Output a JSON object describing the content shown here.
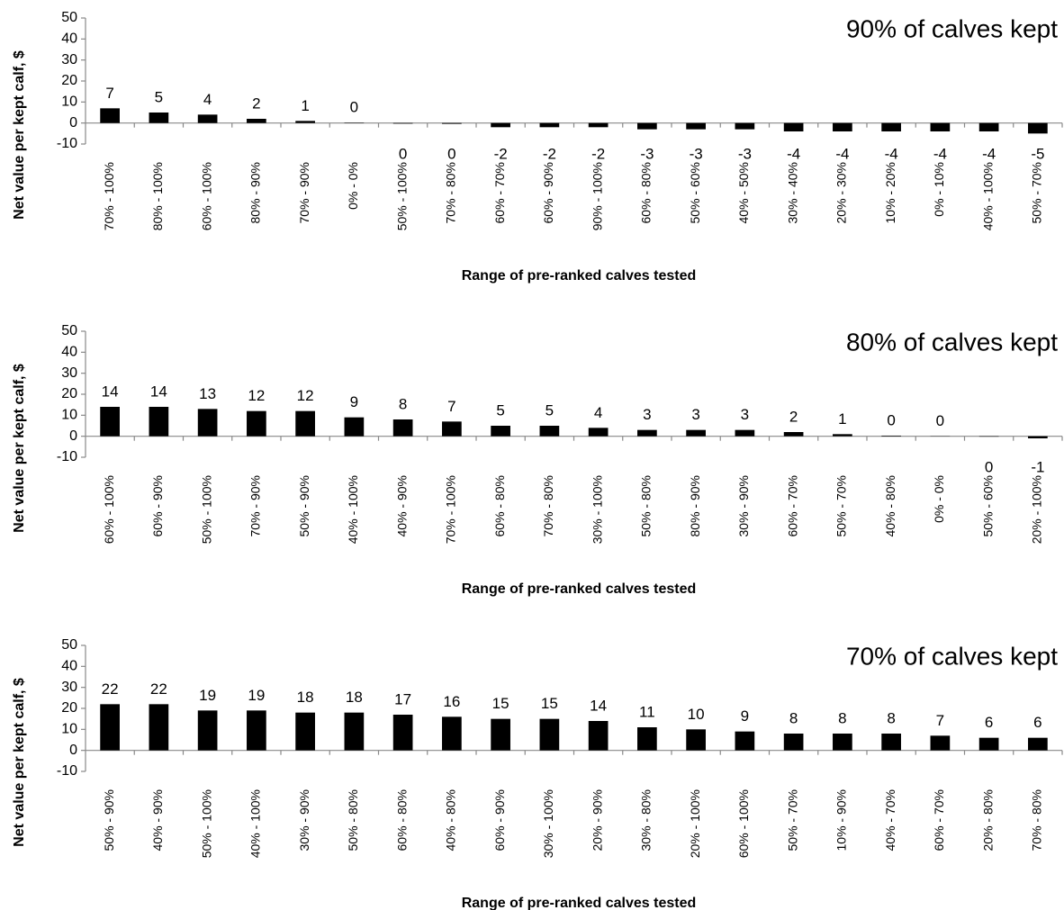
{
  "chart_data": [
    {
      "type": "bar",
      "title": "90% of calves kept",
      "y_label": "Net value per kept calf, $",
      "x_label": "Range of pre-ranked calves tested",
      "categories": [
        "70% - 100%",
        "80% - 100%",
        "60% - 100%",
        "80% - 90%",
        "70% - 90%",
        "0% - 0%",
        "50% - 100%",
        "70% - 80%",
        "60% - 70%",
        "60% - 90%",
        "90% - 100%",
        "60% - 80%",
        "50% - 60%",
        "40% - 50%",
        "30% - 40%",
        "20% - 30%",
        "10% - 20%",
        "0% - 10%",
        "40% - 100%",
        "50% - 70%"
      ],
      "values": [
        7,
        5,
        4,
        2,
        1,
        0.2,
        -0.3,
        -0.4,
        -2,
        -2,
        -2,
        -3,
        -3,
        -3,
        -4,
        -4,
        -4,
        -4,
        -4,
        -5
      ],
      "value_labels": [
        "7",
        "5",
        "4",
        "2",
        "1",
        "0",
        "0",
        "0",
        "-2",
        "-2",
        "-2",
        "-3",
        "-3",
        "-3",
        "-4",
        "-4",
        "-4",
        "-4",
        "-4",
        "-5"
      ],
      "color": "#000000",
      "ylim": [
        -10,
        50
      ],
      "yticks": [
        50,
        40,
        30,
        20,
        10,
        0,
        -10
      ],
      "grid": false
    },
    {
      "type": "bar",
      "title": "80% of calves kept",
      "y_label": "Net value per kept calf, $",
      "x_label": "Range of pre-ranked calves tested",
      "categories": [
        "60% - 100%",
        "60% - 90%",
        "50% - 100%",
        "70% - 90%",
        "50% - 90%",
        "40% - 100%",
        "40% - 90%",
        "70% - 100%",
        "60% - 80%",
        "70% - 80%",
        "30% - 100%",
        "50% - 80%",
        "80% - 90%",
        "30% - 90%",
        "60% - 70%",
        "50% - 70%",
        "40% - 80%",
        "0% - 0%",
        "50% - 60%",
        "20% - 100%"
      ],
      "values": [
        14,
        14,
        13,
        12,
        12,
        9,
        8,
        7,
        5,
        5,
        4,
        3,
        3,
        3,
        2,
        1,
        0.3,
        0.1,
        -0.2,
        -1
      ],
      "value_labels": [
        "14",
        "14",
        "13",
        "12",
        "12",
        "9",
        "8",
        "7",
        "5",
        "5",
        "4",
        "3",
        "3",
        "3",
        "2",
        "1",
        "0",
        "0",
        "0",
        "-1"
      ],
      "color": "#000000",
      "ylim": [
        -10,
        50
      ],
      "yticks": [
        50,
        40,
        30,
        20,
        10,
        0,
        -10
      ],
      "grid": false
    },
    {
      "type": "bar",
      "title": "70% of calves kept",
      "y_label": "Net value per kept calf, $",
      "x_label": "Range of pre-ranked calves tested",
      "categories": [
        "50% - 90%",
        "40% - 90%",
        "50% - 100%",
        "40% - 100%",
        "30% - 90%",
        "50% - 80%",
        "60% - 80%",
        "40% - 80%",
        "60% - 90%",
        "30% - 100%",
        "20% - 90%",
        "30% - 80%",
        "20% - 100%",
        "60% - 100%",
        "50% - 70%",
        "10% - 90%",
        "40% - 70%",
        "60% - 70%",
        "20% - 80%",
        "70% - 80%"
      ],
      "values": [
        22,
        22,
        19,
        19,
        18,
        18,
        17,
        16,
        15,
        15,
        14,
        11,
        10,
        9,
        8,
        8,
        8,
        7,
        6,
        6
      ],
      "color": "#000000",
      "ylim": [
        -10,
        50
      ],
      "yticks": [
        50,
        40,
        30,
        20,
        10,
        0,
        -10
      ],
      "grid": false
    }
  ]
}
